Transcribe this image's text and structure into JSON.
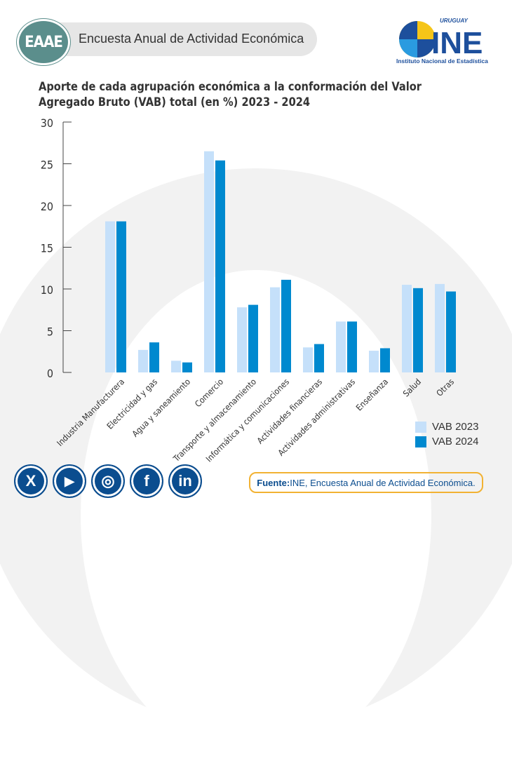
{
  "header": {
    "badge": "EAAE",
    "title": "Encuesta Anual de Actividad Económica"
  },
  "logo": {
    "top": "URUGUAY",
    "name": "INE",
    "subtitle": "Instituto Nacional de Estadística"
  },
  "colors": {
    "vab2023": "#c5e0fa",
    "vab2024": "#0089cf",
    "accent": "#0b4d8f"
  },
  "chart_data": {
    "type": "bar",
    "title": "Aporte de cada agrupación económica a la conformación del Valor Agregado Bruto (VAB) total (en %) 2023 - 2024",
    "categories": [
      "Industria Manufacturera",
      "Electricidad y gas",
      "Agua y saneamiento",
      "Comercio",
      "Transporte y almacenamiento",
      "Informática y comunicaciones",
      "Actividades financieras",
      "Actividades administrativas",
      "Enseñanza",
      "Salud",
      "Otras"
    ],
    "series": [
      {
        "name": "VAB 2023",
        "values": [
          18.1,
          2.7,
          1.4,
          26.5,
          7.8,
          10.2,
          3.0,
          6.1,
          2.6,
          10.5,
          10.6
        ]
      },
      {
        "name": "VAB 2024",
        "values": [
          18.1,
          3.6,
          1.2,
          25.4,
          8.1,
          11.1,
          3.4,
          6.1,
          2.9,
          10.1,
          9.7
        ]
      }
    ],
    "yticks": [
      "0",
      "5",
      "10",
      "15",
      "20",
      "25",
      "30"
    ],
    "ylim": [
      0,
      30
    ],
    "xlabel": "",
    "ylabel": "",
    "legend": "bottom-right",
    "grid": false
  },
  "social": [
    "X",
    "▶",
    "◎",
    "f",
    "in"
  ],
  "source": {
    "label": "Fuente:",
    "text": " INE, Encuesta Anual de Actividad Económica."
  }
}
